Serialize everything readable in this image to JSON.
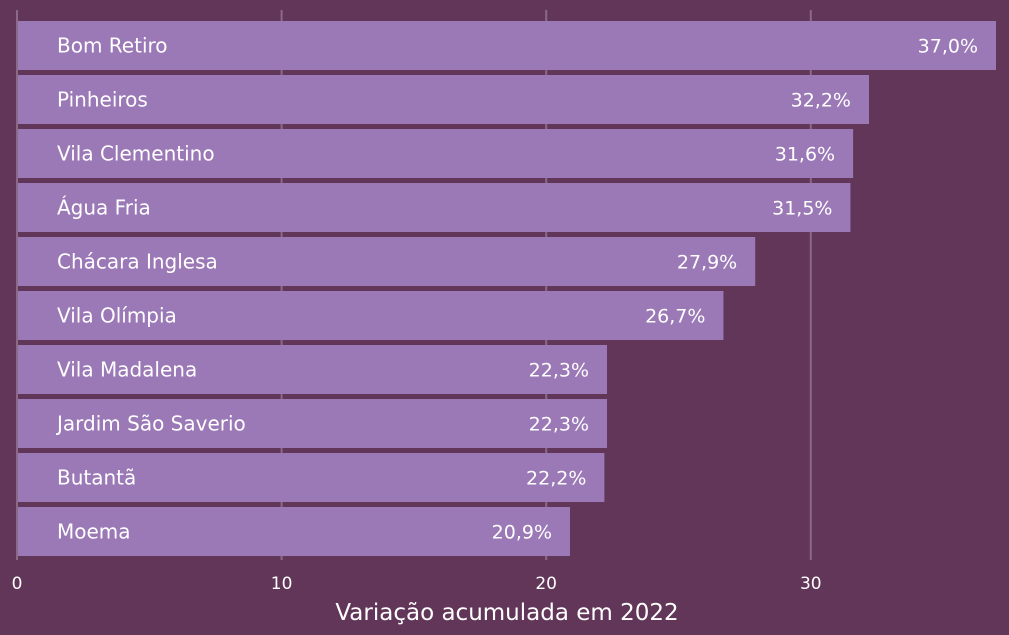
{
  "chart_data": {
    "type": "bar",
    "orientation": "horizontal",
    "categories": [
      "Bom Retiro",
      "Pinheiros",
      "Vila Clementino",
      "Água Fria",
      "Chácara Inglesa",
      "Vila Olímpia",
      "Vila Madalena",
      "Jardim São Saverio",
      "Butantã",
      "Moema"
    ],
    "values": [
      37.0,
      32.2,
      31.6,
      31.5,
      27.9,
      26.7,
      22.3,
      22.3,
      22.2,
      20.9
    ],
    "value_labels": [
      "37,0%",
      "32,2%",
      "31,6%",
      "31,5%",
      "27,9%",
      "26,7%",
      "22,3%",
      "22,3%",
      "22,2%",
      "20,9%"
    ],
    "title": "",
    "xlabel": "Variação acumulada em 2022",
    "ylabel": "",
    "xlim": [
      0,
      37
    ],
    "xticks": [
      0,
      10,
      20,
      30
    ],
    "xtick_labels": [
      "0",
      "10",
      "20",
      "30"
    ],
    "grid": true,
    "legend": "none",
    "colors": {
      "background": "#623658",
      "bar": "#9b78b6",
      "gridline": "#8a6a86",
      "text": "#ffffff"
    }
  }
}
